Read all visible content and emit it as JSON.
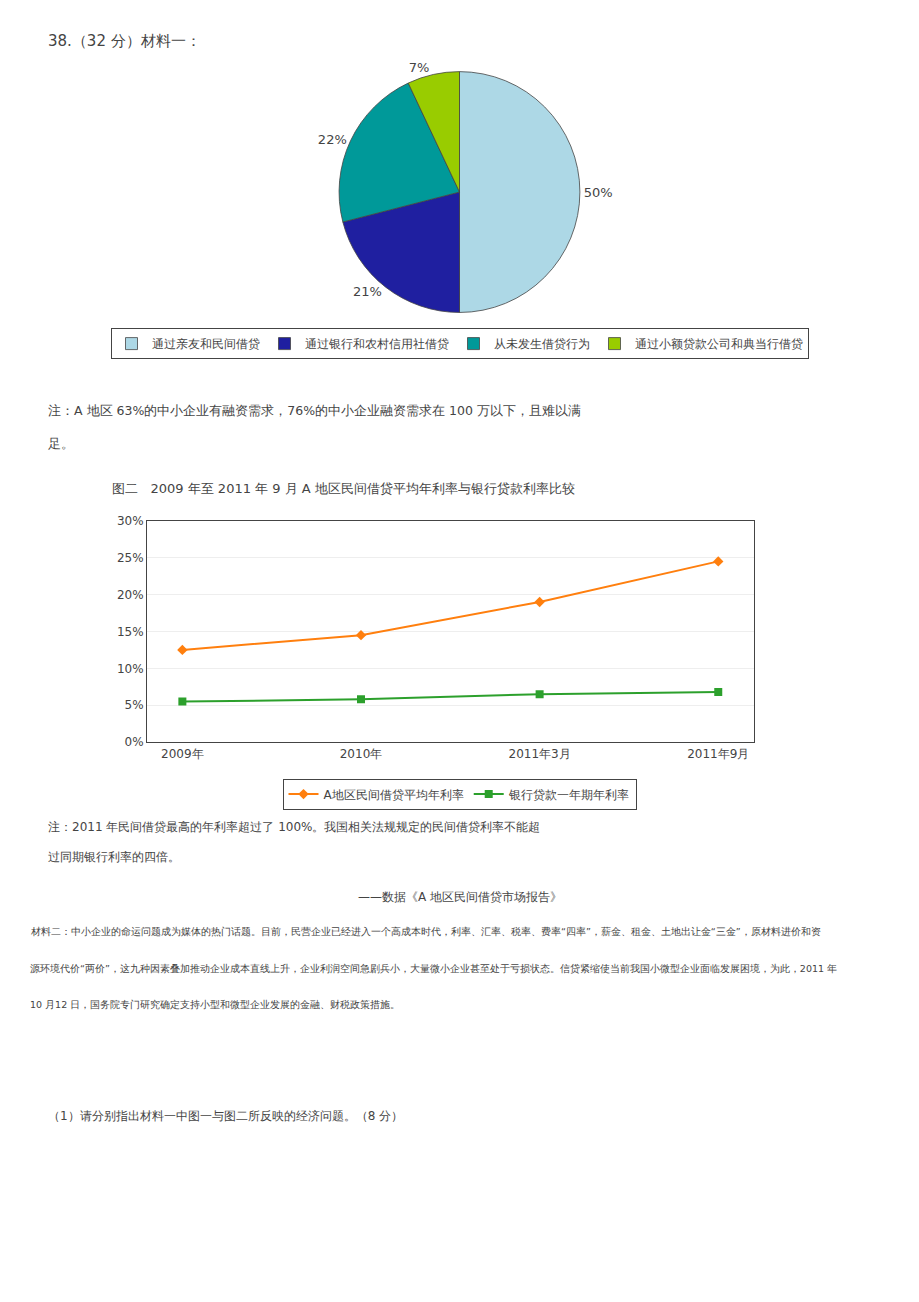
{
  "chart_data": [
    {
      "type": "pie",
      "annotations": [
        "38.（32 分）材料一：",
        "注：A 地区 63%的中小企业有融资需求，76%的中小企业融资需求在 100 万以下，且难以满",
        "足。"
      ],
      "categories": [
        "通过亲友和民间借贷",
        "通过银行和农村信用社借贷",
        "从未发生借贷行为",
        "通过小额贷款公司和典当行借贷"
      ],
      "values": [
        50,
        21,
        22,
        7
      ],
      "value_labels": [
        "50%",
        "21%",
        "22%",
        "7%"
      ],
      "colors": [
        "#add8e6",
        "#1f1fa0",
        "#009999",
        "#99cc00"
      ],
      "data_labels": true,
      "legend": "bottom"
    },
    {
      "type": "line",
      "title": "图二   2009 年至 2011 年 9 月 A 地区民间借贷平均年利率与银行贷款利率比较",
      "categories": [
        "2009年",
        "2010年",
        "2011年3月",
        "2011年9月"
      ],
      "series": [
        {
          "name": "A地区民间借贷平均年利率",
          "values": [
            12.5,
            14.5,
            19.0,
            24.5
          ],
          "marker": "diamond"
        },
        {
          "name": "银行贷款一年期年利率",
          "values": [
            5.5,
            5.8,
            6.5,
            6.8
          ],
          "marker": "square"
        }
      ],
      "ylim": [
        0,
        30
      ],
      "yticks": [
        {
          "value": 0,
          "label": "0%"
        },
        {
          "value": 5,
          "label": "5%"
        },
        {
          "value": 10,
          "label": "10%"
        },
        {
          "value": 15,
          "label": "15%"
        },
        {
          "value": 20,
          "label": "20%"
        },
        {
          "value": 25,
          "label": "25%"
        },
        {
          "value": 30,
          "label": "30%"
        }
      ],
      "grid": true,
      "legend": "bottom",
      "annotations": [
        "注：2011 年民间借贷最高的年利率超过了 100%。我国相关法规规定的民间借贷利率不能超",
        "过同期银行利率的四倍。",
        "——数据《A 地区民间借贷市场报告》",
        "材料二：中小企业的命运问题成为媒体的热门话题。目前，民营企业已经进入一个高成本时代，利率、汇率、税率、费率“四率”，薪金、租金、土地出让金“三金”，原材料进价和资",
        "源环境代价“两价”，这九种因素叠加推动企业成本直线上升，企业利润空间急剧兵小，大量微小企业甚至处于亏损状态。信贷紧缩使当前我国小微型企业面临发展困境，为此，2011 年",
        "10 月12 日，国务院专门研究确定支持小型和微型企业发展的金融、财税政策措施。",
        "（1）请分别指出材料一中图一与图二所反映的经济问题。（8 分）"
      ]
    }
  ]
}
